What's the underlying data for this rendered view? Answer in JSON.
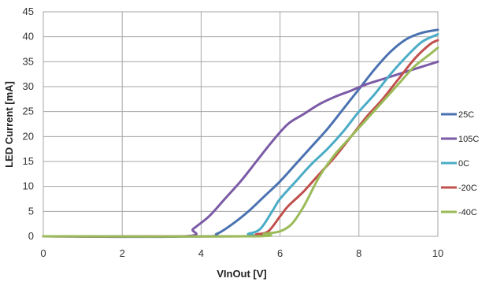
{
  "chart_data": {
    "type": "line",
    "title": "",
    "xlabel": "VInOut [V]",
    "ylabel": "LED Current [mA]",
    "xlim": [
      0,
      10
    ],
    "ylim": [
      0,
      45
    ],
    "xticks": [
      0,
      2,
      4,
      6,
      8,
      10
    ],
    "yticks": [
      0,
      5,
      10,
      15,
      20,
      25,
      30,
      35,
      40,
      45
    ],
    "grid": true,
    "legend_position": "right",
    "series": [
      {
        "name": "25C",
        "color": "#4a72b0",
        "x": [
          0,
          4.0,
          4.4,
          4.8,
          5.2,
          5.6,
          6.0,
          6.4,
          6.8,
          7.2,
          7.6,
          8.0,
          8.4,
          8.8,
          9.2,
          9.6,
          10.0
        ],
        "y": [
          0,
          0,
          0.5,
          2.5,
          5,
          8,
          11,
          14.5,
          18,
          21.5,
          25.5,
          29.5,
          33.5,
          37,
          39.5,
          40.8,
          41.4
        ]
      },
      {
        "name": "105C",
        "color": "#7b5aa6",
        "x": [
          0,
          3.55,
          3.8,
          4.2,
          4.6,
          5.0,
          5.4,
          5.8,
          6.2,
          6.6,
          7.0,
          7.4,
          7.8,
          8.2,
          8.6,
          9.0,
          9.4,
          9.8,
          10.0
        ],
        "y": [
          0,
          0,
          1.5,
          4,
          7.5,
          11,
          15,
          19,
          22.5,
          24.5,
          26.5,
          28,
          29.2,
          30.5,
          31.5,
          32.5,
          33.5,
          34.5,
          35
        ]
      },
      {
        "name": "0C",
        "color": "#4bacc6",
        "x": [
          0,
          4.9,
          5.2,
          5.5,
          5.8,
          6.0,
          6.4,
          6.8,
          7.2,
          7.6,
          8.0,
          8.4,
          8.8,
          9.2,
          9.6,
          10.0
        ],
        "y": [
          0,
          0,
          0.5,
          1.5,
          5,
          7.5,
          11,
          14.5,
          17.5,
          21,
          25,
          28.5,
          32.5,
          36,
          39,
          40.5
        ]
      },
      {
        "name": "-20C",
        "color": "#c0504d",
        "x": [
          0,
          5.1,
          5.4,
          5.7,
          6.0,
          6.2,
          6.6,
          7.0,
          7.4,
          7.8,
          8.2,
          8.6,
          9.0,
          9.4,
          9.8,
          10.0
        ],
        "y": [
          0,
          0,
          0.4,
          1,
          4,
          6,
          9,
          12.5,
          16,
          20,
          24,
          27.5,
          31.5,
          35.5,
          38.5,
          39.3
        ]
      },
      {
        "name": "-40C",
        "color": "#9bbb59",
        "x": [
          0,
          5.3,
          5.6,
          6.0,
          6.3,
          6.6,
          7.0,
          7.4,
          7.8,
          8.2,
          8.6,
          9.0,
          9.4,
          9.8,
          10.0
        ],
        "y": [
          0,
          0,
          0.5,
          1,
          2.5,
          6,
          12,
          16.5,
          20,
          23.5,
          27,
          30.5,
          34,
          36.5,
          37.8
        ]
      }
    ]
  }
}
